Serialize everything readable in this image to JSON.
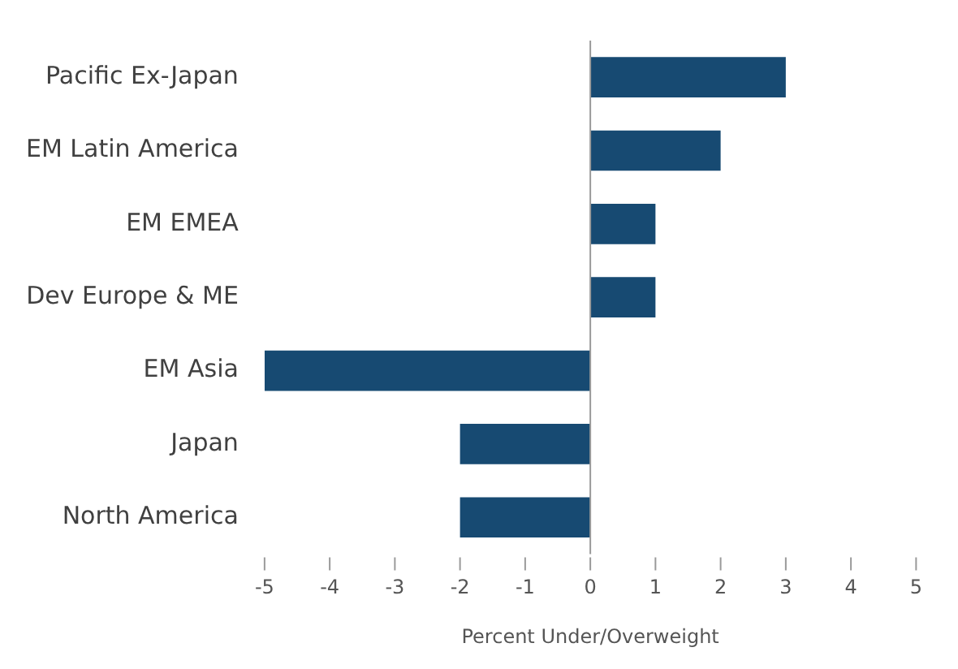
{
  "chart_data": {
    "type": "bar",
    "orientation": "horizontal",
    "xlabel": "Percent Under/Overweight",
    "categories": [
      "Pacific Ex-Japan",
      "EM Latin America",
      "EM EMEA",
      "Dev Europe & ME",
      "EM Asia",
      "Japan",
      "North America"
    ],
    "values": [
      3,
      2,
      1,
      1,
      -5,
      -2,
      -2
    ],
    "color": "#174a72",
    "xlim": [
      -5,
      5
    ],
    "xticks": [
      -5,
      -4,
      -3,
      -2,
      -1,
      0,
      1,
      2,
      3,
      4,
      5
    ],
    "grid": false,
    "legend": false,
    "ref_lines": [
      {
        "axis": "x",
        "value": 0,
        "color": "#9a9a9a"
      }
    ]
  }
}
